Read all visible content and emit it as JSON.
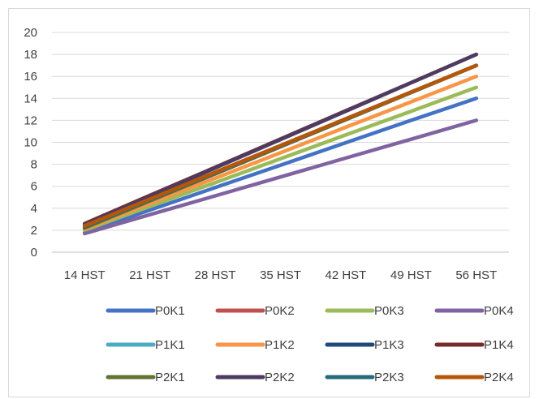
{
  "chart_data": {
    "type": "line",
    "title": "",
    "xlabel": "",
    "ylabel": "",
    "categories": [
      "14 HST",
      "21 HST",
      "28 HST",
      "35 HST",
      "42 HST",
      "49 HST",
      "56 HST"
    ],
    "ylim": [
      0,
      20
    ],
    "yticks": [
      0,
      2,
      4,
      6,
      8,
      10,
      12,
      14,
      16,
      18,
      20
    ],
    "grid": "horizontal",
    "legend_position": "bottom",
    "series": [
      {
        "name": "P0K1",
        "color": "#4472C4",
        "values": [
          1.8,
          3.84,
          5.88,
          7.92,
          9.96,
          12.0,
          14.0
        ]
      },
      {
        "name": "P0K2",
        "color": "#C0504D",
        "values": [
          2.2,
          4.67,
          7.13,
          9.6,
          12.07,
          14.53,
          17.0
        ]
      },
      {
        "name": "P0K3",
        "color": "#9BBB59",
        "values": [
          2.0,
          4.17,
          6.33,
          8.5,
          10.67,
          12.83,
          15.0
        ]
      },
      {
        "name": "P0K4",
        "color": "#8064A2",
        "values": [
          1.7,
          3.42,
          5.13,
          6.85,
          8.57,
          10.28,
          12.0
        ]
      },
      {
        "name": "P1K1",
        "color": "#4BACC6",
        "values": [
          2.3,
          4.75,
          7.2,
          9.65,
          12.1,
          14.55,
          17.0
        ]
      },
      {
        "name": "P1K2",
        "color": "#F79646",
        "values": [
          2.1,
          4.42,
          6.73,
          9.05,
          11.37,
          13.68,
          16.0
        ]
      },
      {
        "name": "P1K3",
        "color": "#1F497D",
        "values": [
          2.4,
          4.83,
          7.27,
          9.7,
          12.13,
          14.57,
          17.0
        ]
      },
      {
        "name": "P1K4",
        "color": "#772C2A",
        "values": [
          2.6,
          5.17,
          7.73,
          10.3,
          12.87,
          15.43,
          18.0
        ]
      },
      {
        "name": "P2K1",
        "color": "#5F7530",
        "values": [
          2.2,
          4.67,
          7.13,
          9.6,
          12.07,
          14.53,
          17.0
        ]
      },
      {
        "name": "P2K2",
        "color": "#4D3B62",
        "values": [
          2.5,
          5.08,
          7.67,
          10.25,
          12.83,
          15.42,
          18.0
        ]
      },
      {
        "name": "P2K3",
        "color": "#276A7C",
        "values": [
          2.3,
          4.75,
          7.2,
          9.65,
          12.1,
          14.55,
          17.0
        ]
      },
      {
        "name": "P2K4",
        "color": "#B65708",
        "values": [
          2.4,
          4.83,
          7.27,
          9.7,
          12.13,
          14.57,
          17.0
        ]
      }
    ]
  }
}
